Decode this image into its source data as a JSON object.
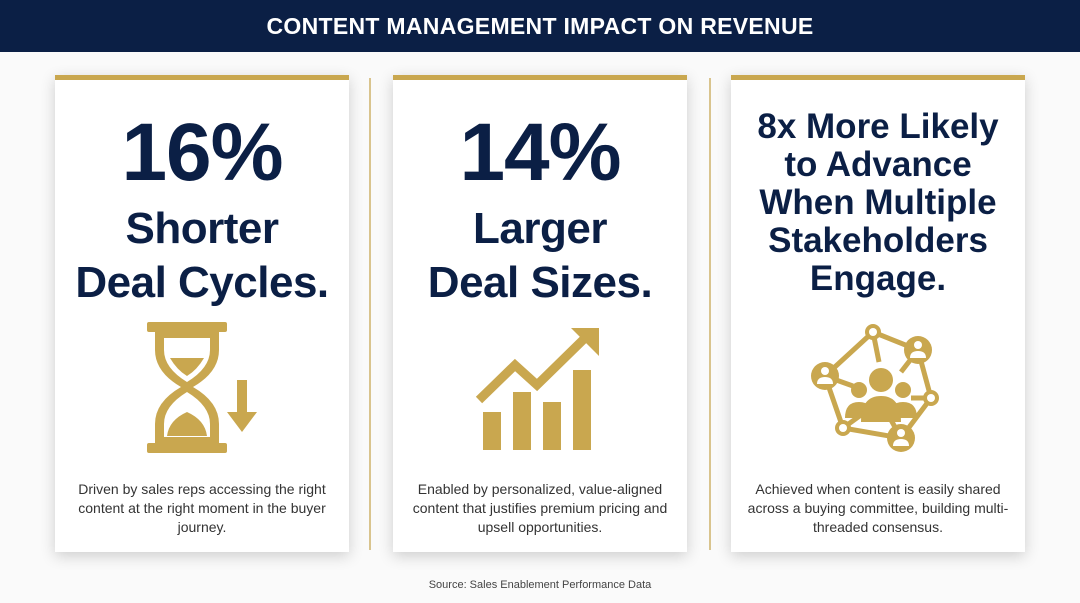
{
  "title": "CONTENT MANAGEMENT IMPACT ON REVENUE",
  "colors": {
    "navy": "#0b1f45",
    "gold": "#c9a74f"
  },
  "cards": [
    {
      "stat": "16%",
      "lines": [
        "Shorter",
        "Deal Cycles."
      ],
      "icon": "hourglass-down-arrow-icon",
      "description": "Driven by sales reps accessing the right content at the right moment in the buyer journey."
    },
    {
      "stat": "14%",
      "lines": [
        "Larger",
        "Deal Sizes."
      ],
      "icon": "bar-chart-growth-arrow-icon",
      "description": "Enabled by personalized, value-aligned content that justifies premium pricing and upsell opportunities."
    },
    {
      "lines": [
        "8x More Likely",
        "to Advance",
        "When Multiple",
        "Stakeholders",
        "Engage."
      ],
      "icon": "stakeholder-network-icon",
      "description": "Achieved when content is easily shared across a buying committee, building multi-threaded consensus."
    }
  ],
  "source": "Source: Sales Enablement Performance Data"
}
